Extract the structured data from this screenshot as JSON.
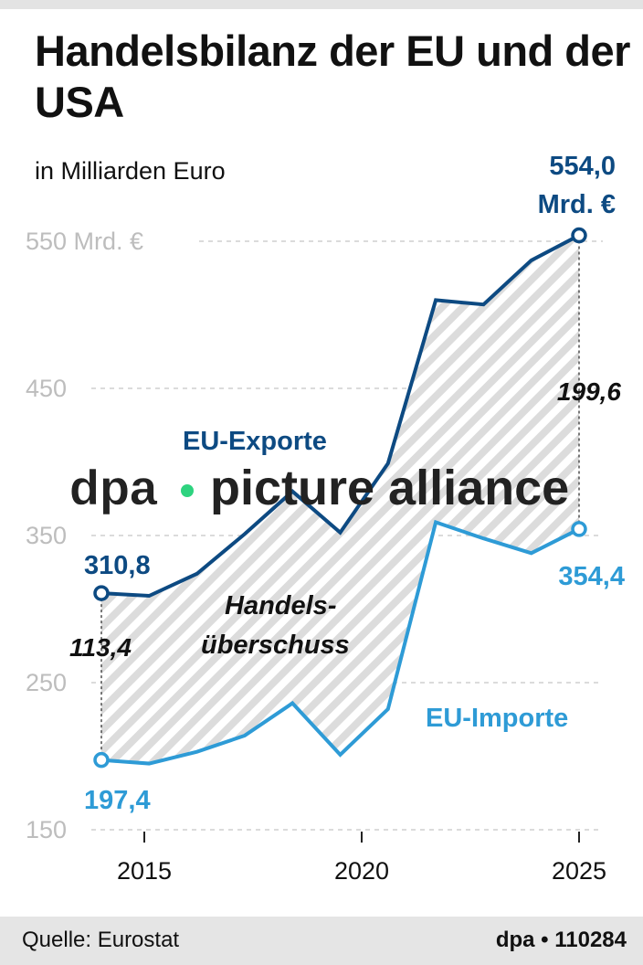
{
  "title": "Handelsbilanz der EU und der USA",
  "subtitle": "in Milliarden Euro",
  "source": "Quelle: Eurostat",
  "credit": "dpa • 110284",
  "watermark": "dpa • picture alliance",
  "chart_data": {
    "type": "line",
    "x": [
      2014,
      2015,
      2016,
      2017,
      2018,
      2019,
      2020,
      2021,
      2022,
      2023,
      2024
    ],
    "series": [
      {
        "name": "EU-Exporte",
        "color": "#0d4a82",
        "values": [
          310.8,
          309,
          324,
          351,
          380,
          352,
          399,
          510,
          507,
          537,
          554.0
        ]
      },
      {
        "name": "EU-Importe",
        "color": "#2e9bd6",
        "values": [
          197.4,
          195,
          203,
          214,
          236,
          201,
          232,
          359,
          348,
          338,
          354.4
        ]
      }
    ],
    "area_label": "Handels-\nüberschuss",
    "area_label_lines": [
      "Handels-",
      "überschuss"
    ],
    "ylim": [
      150,
      560
    ],
    "yticks": [
      150,
      250,
      350,
      450,
      550
    ],
    "ytick_labels": [
      "150",
      "250",
      "350",
      "450",
      "550 Mrd. €"
    ],
    "xticks": [
      "2015",
      "2020",
      "2025"
    ],
    "grid": true,
    "annotations": {
      "export_start": "310,8",
      "export_end_lines": [
        "554,0",
        "Mrd. €"
      ],
      "import_start": "197,4",
      "import_end": "354,4",
      "diff_start": "113,4",
      "diff_end": "199,6"
    }
  }
}
